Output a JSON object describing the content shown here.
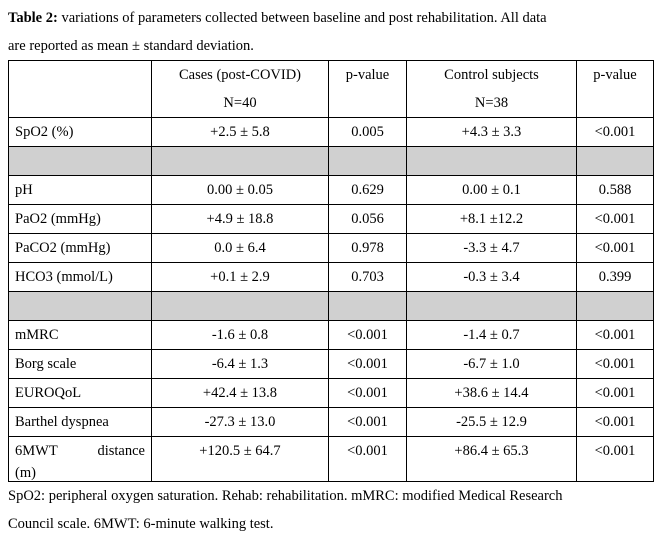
{
  "caption": {
    "label": "Table 2:",
    "text_line1": " variations of parameters collected between baseline and post rehabilitation. All data",
    "text_line2": "are reported as mean ± standard deviation."
  },
  "header": {
    "col1": "",
    "col2_line1": "Cases (post-COVID)",
    "col2_line2": "N=40",
    "col3": "p-value",
    "col4_line1": "Control subjects",
    "col4_line2": "N=38",
    "col5": "p-value"
  },
  "rows": [
    {
      "param": "SpO2 (%)",
      "cases": "+2.5 ± 5.8",
      "p1": "0.005",
      "controls": "+4.3 ± 3.3",
      "p2": "<0.001"
    },
    {
      "param": "pH",
      "cases": "0.00 ± 0.05",
      "p1": "0.629",
      "controls": "0.00 ± 0.1",
      "p2": "0.588"
    },
    {
      "param": "PaO2 (mmHg)",
      "cases": "+4.9 ± 18.8",
      "p1": "0.056",
      "controls": "+8.1 ±12.2",
      "p2": "<0.001"
    },
    {
      "param": "PaCO2 (mmHg)",
      "cases": "0.0 ± 6.4",
      "p1": "0.978",
      "controls": "-3.3 ± 4.7",
      "p2": "<0.001"
    },
    {
      "param": "HCO3 (mmol/L)",
      "cases": "+0.1 ± 2.9",
      "p1": "0.703",
      "controls": "-0.3 ± 3.4",
      "p2": "0.399"
    },
    {
      "param": "mMRC",
      "cases": "-1.6 ± 0.8",
      "p1": "<0.001",
      "controls": "-1.4 ± 0.7",
      "p2": "<0.001"
    },
    {
      "param": "Borg scale",
      "cases": "-6.4 ± 1.3",
      "p1": "<0.001",
      "controls": "-6.7 ± 1.0",
      "p2": "<0.001"
    },
    {
      "param": "EUROQoL",
      "cases": "+42.4 ± 13.8",
      "p1": "<0.001",
      "controls": "+38.6 ± 14.4",
      "p2": "<0.001"
    },
    {
      "param": "Barthel dyspnea",
      "cases": "-27.3 ± 13.0",
      "p1": "<0.001",
      "controls": "-25.5 ± 12.9",
      "p2": "<0.001"
    },
    {
      "param_a": "6MWT",
      "param_b": "distance",
      "param_c": "(m)",
      "cases": "+120.5 ± 64.7",
      "p1": "<0.001",
      "controls": "+86.4 ± 65.3",
      "p2": "<0.001"
    }
  ],
  "footnote": {
    "line1": "SpO2: peripheral oxygen saturation. Rehab: rehabilitation. mMRC: modified Medical Research",
    "line2": "Council scale. 6MWT: 6-minute walking test."
  },
  "colors": {
    "shade": "#d0d0d0",
    "border": "#000000"
  }
}
